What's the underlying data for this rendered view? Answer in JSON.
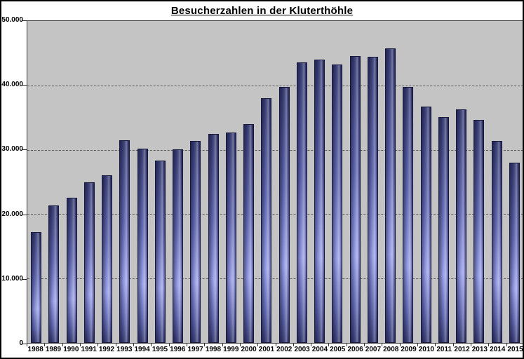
{
  "title": "Besucherzahlen in der Kluterthöhle",
  "chart_data": {
    "type": "bar",
    "title": "Besucherzahlen in der Kluterthöhle",
    "categories": [
      "1988",
      "1989",
      "1990",
      "1991",
      "1992",
      "1993",
      "1994",
      "1995",
      "1996",
      "1997",
      "1998",
      "1999",
      "2000",
      "2001",
      "2002",
      "2003",
      "2004",
      "2005",
      "2006",
      "2007",
      "2008",
      "2009",
      "2010",
      "2011",
      "2012",
      "2013",
      "2014",
      "2015"
    ],
    "values": [
      17200,
      21400,
      22600,
      24900,
      26000,
      31500,
      30200,
      28300,
      30100,
      31400,
      32500,
      32700,
      34000,
      38000,
      39800,
      43600,
      44000,
      43300,
      44600,
      44400,
      45800,
      39800,
      36700,
      35100,
      36300,
      34600,
      31400,
      28000
    ],
    "xlabel": "",
    "ylabel": "",
    "ylim": [
      0,
      50000
    ],
    "y_tick_interval": 10000,
    "y_tick_labels": [
      "0",
      "10.000",
      "20.000",
      "30.000",
      "40.000",
      "50.000"
    ],
    "grid": true,
    "gridline_style": "dashed",
    "legend": false,
    "series_name": "Besucherzahlen"
  },
  "colors": {
    "background": "#ffffff",
    "plot_background": "#c4c4c4",
    "bar_dark": "#353a70",
    "bar_mid": "#5f66ae",
    "bar_light": "#9aa1e9",
    "bar_border": "#16183c",
    "gridline": "#5c5c5c",
    "axis": "#2e2e2e",
    "chart_border": "#000000",
    "title_color": "#000000"
  }
}
